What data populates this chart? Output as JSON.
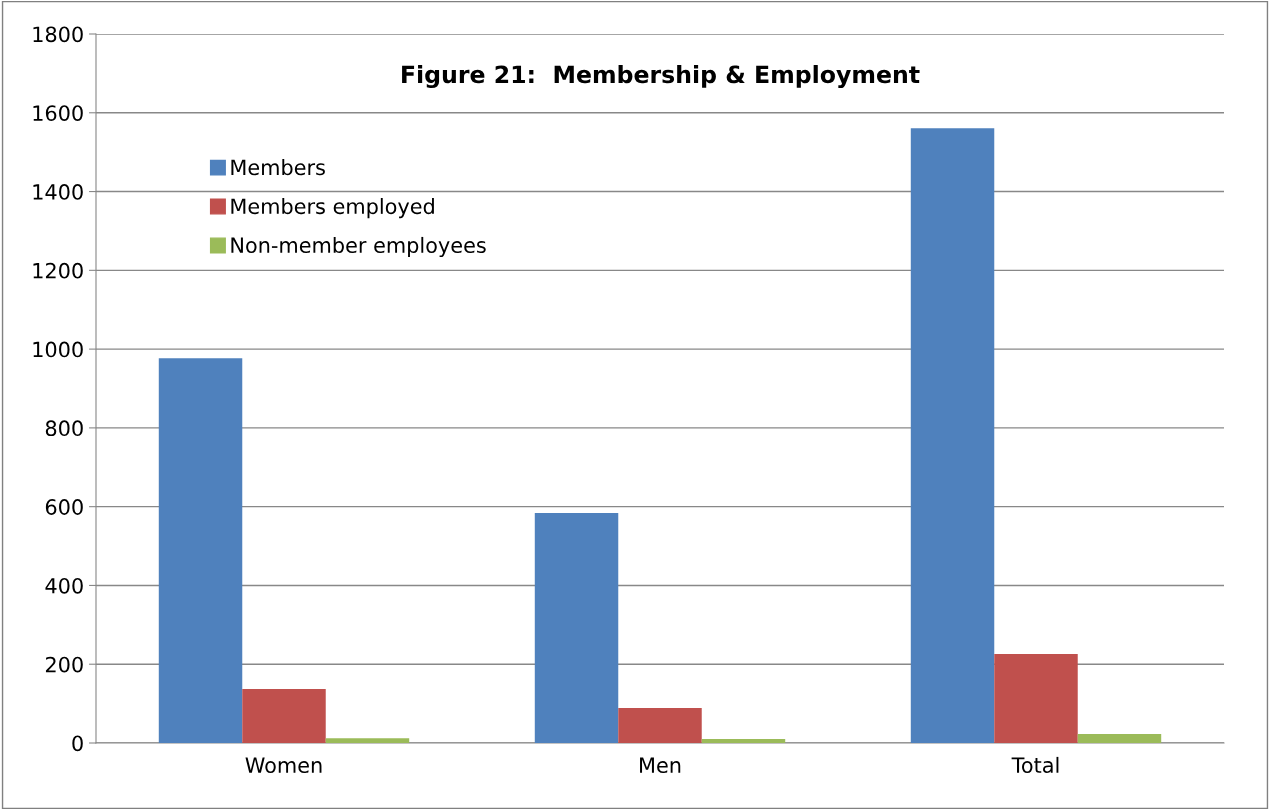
{
  "chart_data": {
    "type": "bar",
    "title": "Figure 21:  Membership & Employment",
    "categories": [
      "Women",
      "Men",
      "Total"
    ],
    "series": [
      {
        "name": "Members",
        "color": "#4f81bd",
        "values": [
          977,
          584,
          1561
        ]
      },
      {
        "name": "Members employed",
        "color": "#c0504d",
        "values": [
          137,
          89,
          226
        ]
      },
      {
        "name": "Non-member employees",
        "color": "#9bbb59",
        "values": [
          12,
          10,
          23
        ]
      }
    ],
    "ylim": [
      0,
      1800
    ],
    "yticks": [
      0,
      200,
      400,
      600,
      800,
      1000,
      1200,
      1400,
      1600,
      1800
    ],
    "grid": "y",
    "legend": "top left"
  }
}
